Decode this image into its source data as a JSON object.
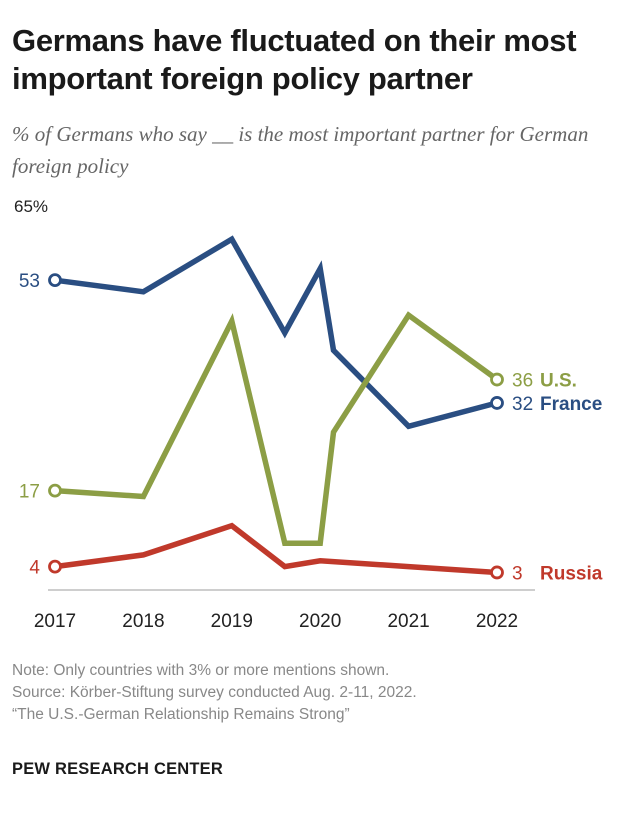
{
  "title": "Germans have fluctuated on their most important foreign policy partner",
  "subtitle": "% of Germans who say __ is the most important partner for German foreign policy",
  "footer": {
    "note": "Note: Only countries with 3% or more mentions shown.",
    "source": "Source: Körber-Stiftung survey conducted Aug. 2-11, 2022.",
    "report": "“The U.S.-German Relationship Remains Strong”"
  },
  "brand": "PEW RESEARCH CENTER",
  "chart_data": {
    "type": "line",
    "ylim": [
      0,
      65
    ],
    "y_top_label": "65%",
    "xticks": [
      "2017",
      "2018",
      "2019",
      "2020",
      "2021",
      "2022"
    ],
    "xlim": [
      2017,
      2022.5
    ],
    "series": [
      {
        "name": "France",
        "color": "#2a4e82",
        "label_bold": true,
        "x": [
          2017,
          2018,
          2019,
          2019.6,
          2020,
          2020.15,
          2021,
          2022
        ],
        "y": [
          53,
          51,
          60,
          44,
          55,
          41,
          28,
          32
        ],
        "start_label": "53",
        "end_label": "32"
      },
      {
        "name": "U.S.",
        "color": "#8c9e45",
        "label_bold": true,
        "x": [
          2017,
          2018,
          2019,
          2019.6,
          2020,
          2020.15,
          2021,
          2022
        ],
        "y": [
          17,
          16,
          46,
          8,
          8,
          27,
          47,
          36
        ],
        "start_label": "17",
        "end_label": "36"
      },
      {
        "name": "Russia",
        "color": "#c0392b",
        "label_bold": true,
        "x": [
          2017,
          2018,
          2019,
          2019.6,
          2020,
          2021,
          2022
        ],
        "y": [
          4,
          6,
          11,
          4,
          5,
          4,
          3
        ],
        "start_label": "4",
        "end_label": "3"
      }
    ]
  }
}
